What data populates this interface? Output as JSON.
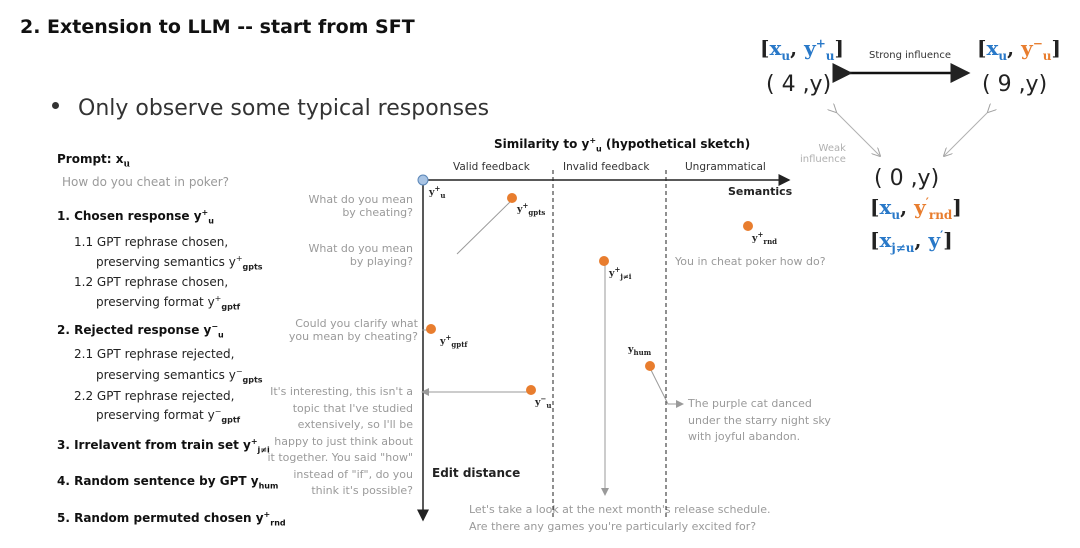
{
  "title": "2. Extension to LLM -- start from SFT",
  "bullet": "Only observe some typical responses",
  "left_panel": {
    "prompt_label": "Prompt: x",
    "prompt_sub": "u",
    "prompt_text": "How do you cheat in poker?",
    "s1": "1. Chosen response y",
    "s1_sub": "u",
    "s1_sup": "+",
    "s1_1a": "1.1 GPT rephrase chosen,",
    "s1_1b": "preserving semantics y",
    "s1_1b_sub": "gpts",
    "s1_1b_sup": "+",
    "s1_2a": "1.2 GPT rephrase chosen,",
    "s1_2b": "preserving format y",
    "s1_2b_sub": "gptf",
    "s1_2b_sup": "+",
    "s2": "2. Rejected response y",
    "s2_sub": "u",
    "s2_sup": "−",
    "s2_1a": "2.1 GPT rephrase rejected,",
    "s2_1b": "preserving semantics y",
    "s2_1b_sub": "gpts",
    "s2_1b_sup": "−",
    "s2_2a": "2.2 GPT rephrase rejected,",
    "s2_2b": "preserving format y",
    "s2_2b_sub": "gptf",
    "s2_2b_sup": "−",
    "s3": "3. Irrelavent from train set y",
    "s3_sub": "j≠i",
    "s3_sup": "+",
    "s4": "4. Random sentence by GPT y",
    "s4_sub": "hum",
    "s5": "5. Random permuted chosen y",
    "s5_sub": "rnd",
    "s5_sup": "+"
  },
  "examples": {
    "e1a": "What do you mean",
    "e1b": "by cheating?",
    "e2a": "What do you mean",
    "e2b": "by playing?",
    "e3a": "Could you clarify what",
    "e3b": "you mean by cheating?",
    "e4a": "It's interesting, this isn't a",
    "e4b": "topic that I've studied",
    "e4c": "extensively, so I'll be",
    "e4d": "happy to just think about",
    "e4e": "it together. You said \"how\"",
    "e4f": "instead of \"if\", do you",
    "e4g": "think it's possible?",
    "rnd": "You in cheat poker how do?",
    "hum_a": "The purple cat danced",
    "hum_b": "under the starry night sky",
    "hum_c": "with joyful abandon.",
    "jnei_a": "Let's take a look at the next month's release schedule.",
    "jnei_b": "Are there any games you're particularly excited for?"
  },
  "chart": {
    "title": "Similarity to y",
    "title_sub": "u",
    "title_sup": "+",
    "title_tail": " (hypothetical sketch)",
    "col1": "Valid feedback",
    "col2": "Invalid feedback",
    "col3": "Ungrammatical",
    "x_axis": "Semantics",
    "y_axis": "Edit distance",
    "colors": {
      "orange": "#e87d2e",
      "blue_dot": "#a9c4e4",
      "axis": "#222222"
    },
    "points": [
      {
        "name": "y_u_plus",
        "label": "y",
        "sub": "u",
        "sup": "+"
      },
      {
        "name": "y_gpts_plus",
        "label": "y",
        "sub": "gpts",
        "sup": "+"
      },
      {
        "name": "y_rnd_plus",
        "label": "y",
        "sub": "rnd",
        "sup": "+"
      },
      {
        "name": "y_jnei_plus",
        "label": "y",
        "sub": "j≠i",
        "sup": "+"
      },
      {
        "name": "y_gptf_plus",
        "label": "y",
        "sub": "gptf",
        "sup": "+"
      },
      {
        "name": "y_hum",
        "label": "y",
        "sub": "hum",
        "sup": ""
      },
      {
        "name": "y_u_minus",
        "label": "y",
        "sub": "u",
        "sup": "−"
      }
    ]
  },
  "influence": {
    "pair1_x": "x",
    "pair1_xsub": "u",
    "pair1_y": "y",
    "pair1_ysub": "u",
    "pair1_ysup": "+",
    "pair1_hand": "( 4 ,y)",
    "strong": "Strong influence",
    "pair2_x": "x",
    "pair2_xsub": "u",
    "pair2_y": "y",
    "pair2_ysub": "u",
    "pair2_ysup": "−",
    "pair2_hand": "( 9 ,y)",
    "weak_a": "Weak",
    "weak_b": "influence",
    "pair3_hand": "( 0 ,y)",
    "pair3_x": "x",
    "pair3_xsub": "u",
    "pair3_y": "y",
    "pair3_ysub": "rnd",
    "pair3_ysup": "′",
    "pair4_x": "x",
    "pair4_xsub": "j≠u",
    "pair4_y": "y",
    "pair4_ysup": "′"
  }
}
